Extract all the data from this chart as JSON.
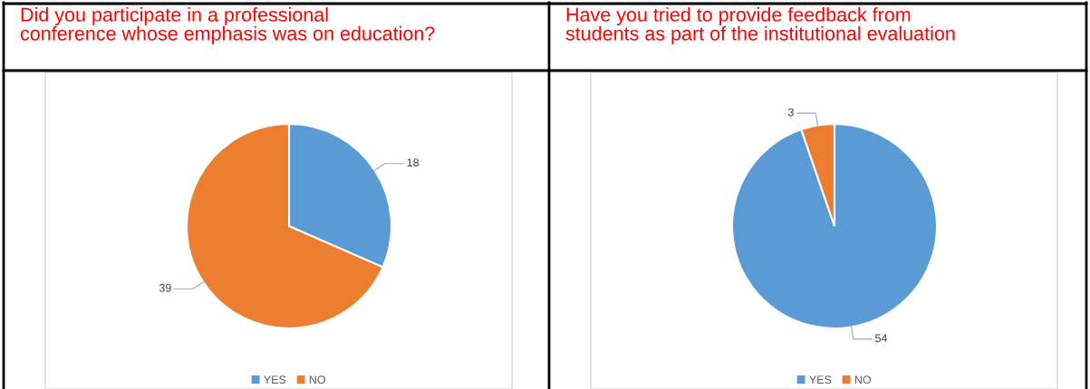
{
  "chart_data": [
    {
      "type": "pie",
      "title": "Did you participate in a professional\nconference whose emphasis was on education?",
      "categories": [
        "YES",
        "NO"
      ],
      "values": [
        18,
        39
      ],
      "colors": [
        "#5b9bd5",
        "#ed7d31"
      ],
      "data_labels": true,
      "legend": "bottom"
    },
    {
      "type": "pie",
      "title": "Have you tried to provide feedback from\nstudents as part of the institutional evaluation",
      "categories": [
        "YES",
        "NO"
      ],
      "values": [
        54,
        3
      ],
      "colors": [
        "#5b9bd5",
        "#ed7d31"
      ],
      "data_labels": true,
      "legend": "bottom"
    }
  ]
}
